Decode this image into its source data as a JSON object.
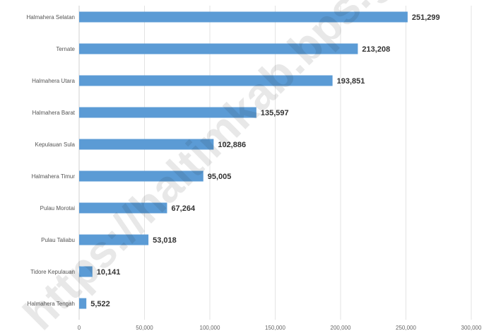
{
  "chart_data": {
    "type": "bar",
    "orientation": "horizontal",
    "categories": [
      "Halmahera Selatan",
      "Ternate",
      "Halmahera Utara",
      "Halmahera Barat",
      "Kepulauan Sula",
      "Halmahera Timur",
      "Pulau Morotai",
      "Pulau Taliabu",
      "Tidore Kepulauan",
      "Halmahera Tengah"
    ],
    "values": [
      251299,
      213208,
      193851,
      135597,
      102886,
      95005,
      67264,
      53018,
      10141,
      5522
    ],
    "data_labels": [
      "251,299",
      "213,208",
      "193,851",
      "135,597",
      "102,886",
      "95,005",
      "67,264",
      "53,018",
      "10,141",
      "5,522"
    ],
    "xlim": [
      0,
      300000
    ],
    "x_ticks": [
      0,
      50000,
      100000,
      150000,
      200000,
      250000,
      300000
    ],
    "x_tick_labels": [
      "0",
      "50,000",
      "100,000",
      "150,000",
      "200,000",
      "250,000",
      "300,000"
    ],
    "bar_color": "#5b9bd5",
    "grid": true,
    "title": "",
    "xlabel": "",
    "ylabel": ""
  },
  "watermark": {
    "text": "https://haltimkab.bps.go.id"
  }
}
